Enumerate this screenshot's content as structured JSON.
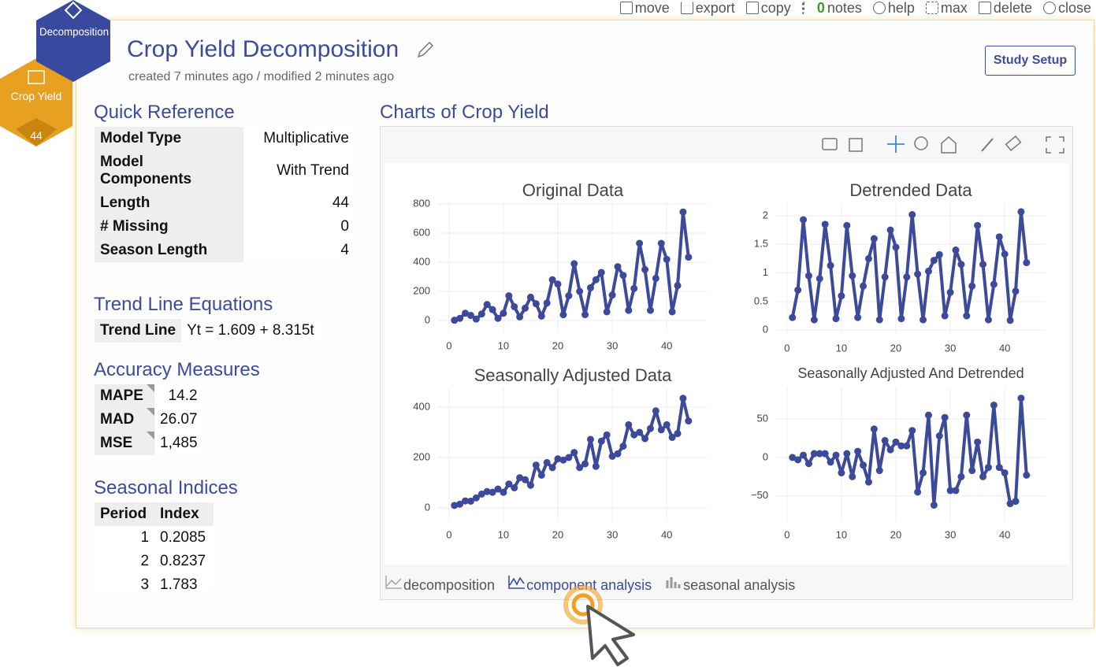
{
  "toolbar": {
    "items": [
      "move",
      "export",
      "copy",
      "notes",
      "help",
      "max",
      "delete",
      "close"
    ],
    "notes_count": "0"
  },
  "badges": {
    "tool": "Decomposition",
    "data": "Crop Yield",
    "count": "44"
  },
  "header": {
    "title": "Crop Yield Decomposition",
    "subtitle": "created 7 minutes ago / modified 2 minutes ago",
    "button": "Study Setup"
  },
  "quick_reference": {
    "title": "Quick Reference",
    "rows": [
      [
        "Model Type",
        "Multiplicative"
      ],
      [
        "Model Components",
        "With Trend"
      ],
      [
        "Length",
        "44"
      ],
      [
        "# Missing",
        "0"
      ],
      [
        "Season Length",
        "4"
      ]
    ]
  },
  "trend": {
    "title": "Trend Line Equations",
    "label": "Trend Line",
    "equation": "Yt = 1.609 + 8.315t"
  },
  "accuracy": {
    "title": "Accuracy Measures",
    "rows": [
      [
        "MAPE",
        "14.2"
      ],
      [
        "MAD",
        "26.07"
      ],
      [
        "MSE",
        "1,485"
      ]
    ]
  },
  "seasonal": {
    "title": "Seasonal Indices",
    "headers": [
      "Period",
      "Index"
    ],
    "rows": [
      [
        "1",
        "0.2085"
      ],
      [
        "2",
        "0.8237"
      ],
      [
        "3",
        "1.783"
      ]
    ]
  },
  "panel": {
    "title": "Charts of Crop Yield",
    "tabs": [
      "decomposition",
      "component analysis",
      "seasonal analysis"
    ],
    "active_tab": 1
  },
  "charts": [
    {
      "type": "line",
      "title": "Original Data",
      "color": "#3d4a9a",
      "grid": true,
      "x": [
        1,
        2,
        3,
        4,
        5,
        6,
        7,
        8,
        9,
        10,
        11,
        12,
        13,
        14,
        15,
        16,
        17,
        18,
        19,
        20,
        21,
        22,
        23,
        24,
        25,
        26,
        27,
        28,
        29,
        30,
        31,
        32,
        33,
        34,
        35,
        36,
        37,
        38,
        39,
        40,
        41,
        42,
        43,
        44
      ],
      "values": [
        2,
        15,
        50,
        35,
        10,
        45,
        110,
        75,
        15,
        50,
        170,
        95,
        25,
        85,
        160,
        115,
        30,
        120,
        280,
        250,
        40,
        170,
        390,
        200,
        40,
        225,
        280,
        330,
        60,
        175,
        370,
        310,
        70,
        220,
        530,
        350,
        70,
        290,
        530,
        420,
        60,
        240,
        745,
        435
      ],
      "xlim": [
        -2,
        47.5
      ],
      "ylim": [
        -81,
        822
      ],
      "xticks": [
        0,
        10,
        20,
        30,
        40
      ],
      "yticks": [
        0,
        200,
        400,
        600,
        800
      ]
    },
    {
      "type": "line",
      "title": "Detrended Data",
      "color": "#3d4a9a",
      "grid": true,
      "x": [
        1,
        2,
        3,
        4,
        5,
        6,
        7,
        8,
        9,
        10,
        11,
        12,
        13,
        14,
        15,
        16,
        17,
        18,
        19,
        20,
        21,
        22,
        23,
        24,
        25,
        26,
        27,
        28,
        29,
        30,
        31,
        32,
        33,
        34,
        35,
        36,
        37,
        38,
        39,
        40,
        41,
        42,
        43,
        44
      ],
      "values": [
        0.22,
        0.7,
        1.93,
        0.95,
        0.18,
        0.9,
        1.85,
        1.13,
        0.2,
        0.6,
        1.83,
        0.95,
        0.22,
        0.77,
        1.25,
        1.6,
        0.18,
        0.93,
        1.75,
        1.45,
        0.2,
        0.93,
        2.02,
        0.98,
        0.18,
        1.03,
        1.22,
        1.32,
        0.25,
        0.66,
        1.4,
        1.15,
        0.25,
        0.77,
        1.83,
        1.15,
        0.18,
        0.8,
        1.63,
        1.33,
        0.17,
        0.68,
        2.07,
        1.18
      ],
      "xlim": [
        -2,
        47.5
      ],
      "ylim": [
        -0.08,
        2.22
      ],
      "xticks": [
        0,
        10,
        20,
        30,
        40
      ],
      "yticks": [
        0,
        0.5,
        1,
        1.5,
        2
      ]
    },
    {
      "type": "line",
      "title": "Seasonally Adjusted Data",
      "color": "#3d4a9a",
      "grid": true,
      "x": [
        1,
        2,
        3,
        4,
        5,
        6,
        7,
        8,
        9,
        10,
        11,
        12,
        13,
        14,
        15,
        16,
        17,
        18,
        19,
        20,
        21,
        22,
        23,
        24,
        25,
        26,
        27,
        28,
        29,
        30,
        31,
        32,
        33,
        34,
        35,
        36,
        37,
        38,
        39,
        40,
        41,
        42,
        43,
        44
      ],
      "values": [
        10,
        15,
        28,
        27,
        40,
        55,
        65,
        62,
        75,
        62,
        95,
        80,
        120,
        112,
        90,
        170,
        130,
        180,
        160,
        195,
        190,
        200,
        220,
        160,
        175,
        272,
        165,
        265,
        290,
        205,
        215,
        245,
        330,
        290,
        300,
        275,
        315,
        385,
        310,
        330,
        280,
        295,
        435,
        345
      ],
      "xlim": [
        -2,
        47.5
      ],
      "ylim": [
        -53,
        478
      ],
      "xticks": [
        0,
        10,
        20,
        30,
        40
      ],
      "yticks": [
        0,
        200,
        400
      ]
    },
    {
      "type": "line",
      "title": "Seasonally Adjusted And Detrended",
      "color": "#3d4a9a",
      "grid": true,
      "x": [
        1,
        2,
        3,
        4,
        5,
        6,
        7,
        8,
        9,
        10,
        11,
        12,
        13,
        14,
        15,
        16,
        17,
        18,
        19,
        20,
        21,
        22,
        23,
        24,
        25,
        26,
        27,
        28,
        29,
        30,
        31,
        32,
        33,
        34,
        35,
        36,
        37,
        38,
        39,
        40,
        41,
        42,
        43,
        44
      ],
      "values": [
        0,
        -3,
        3,
        -8,
        5,
        5,
        5,
        -6,
        3,
        -20,
        5,
        -25,
        8,
        -10,
        -32,
        37,
        -17,
        22,
        10,
        20,
        15,
        15,
        35,
        -45,
        -20,
        55,
        -62,
        28,
        52,
        -43,
        -43,
        -25,
        55,
        -17,
        20,
        -25,
        -13,
        68,
        -13,
        -20,
        -60,
        -57,
        77,
        -23
      ],
      "xlim": [
        -2,
        47.5
      ],
      "ylim": [
        -83,
        91
      ],
      "xticks": [
        0,
        10,
        20,
        30,
        40
      ],
      "yticks": [
        {
          "value": -50,
          "label": "−50"
        },
        0,
        50
      ]
    }
  ]
}
